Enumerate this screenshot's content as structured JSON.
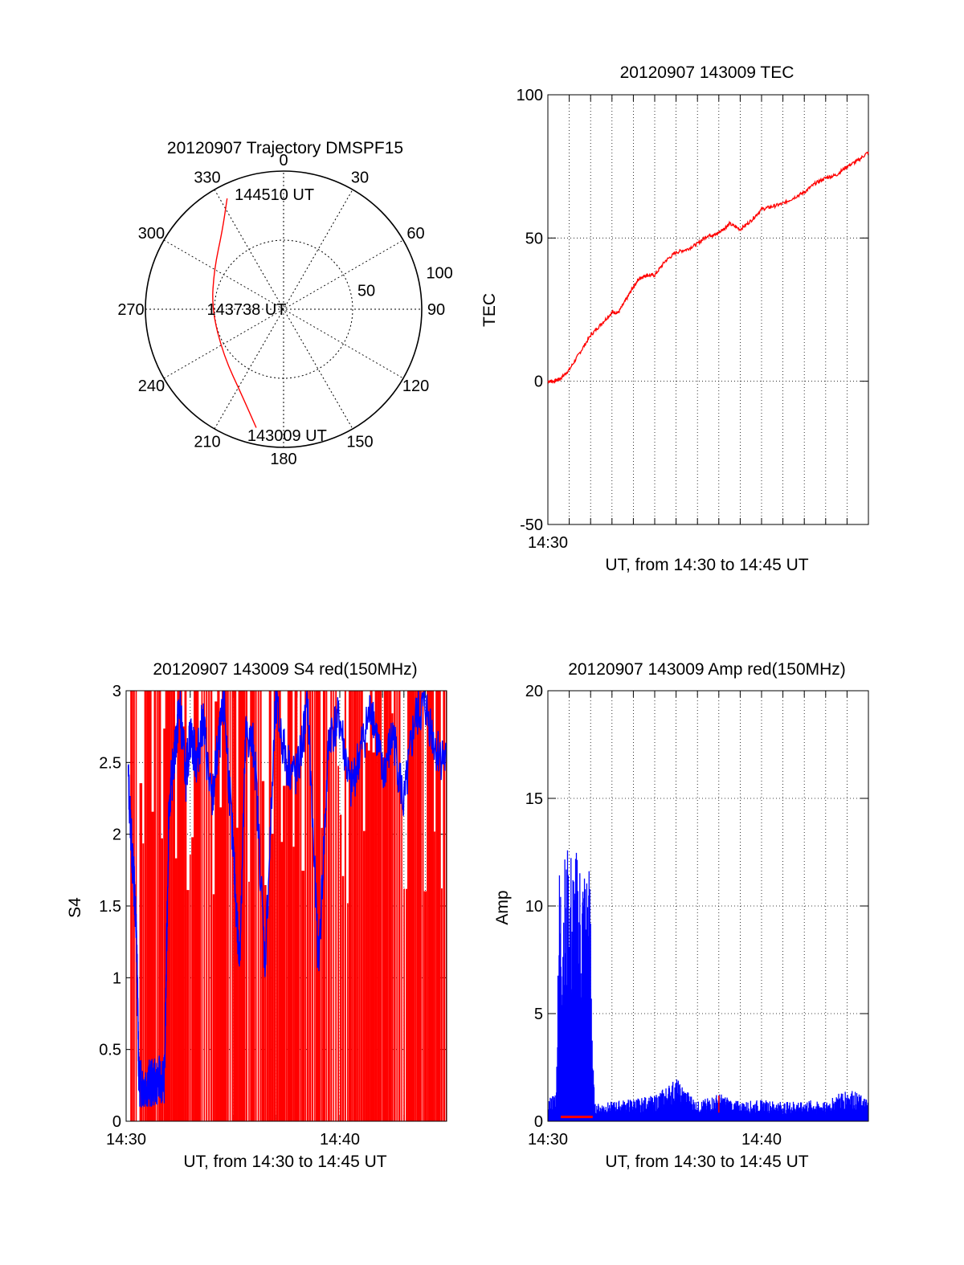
{
  "polar": {
    "type": "polar-trajectory",
    "title": "20120907 Trajectory DMSPF15",
    "azimuth_labels": [
      "0",
      "30",
      "60",
      "90",
      "120",
      "150",
      "180",
      "210",
      "240",
      "270",
      "300",
      "330"
    ],
    "radial_labels": [
      "50",
      "100"
    ],
    "trajectory": {
      "color": "#ff0000",
      "points": [
        {
          "az": 193,
          "r": 88
        },
        {
          "az": 205,
          "r": 70
        },
        {
          "az": 232,
          "r": 55
        },
        {
          "az": 270,
          "r": 52
        },
        {
          "az": 300,
          "r": 58
        },
        {
          "az": 322,
          "r": 72
        },
        {
          "az": 333,
          "r": 90
        }
      ]
    },
    "annotations": [
      {
        "text": "144510 UT",
        "az": 339,
        "r": 89
      },
      {
        "text": "143738 UT",
        "az": 270,
        "r": 52
      },
      {
        "text": "143009 UT",
        "az": 194,
        "r": 94
      }
    ]
  },
  "tec": {
    "type": "line",
    "title": "20120907 143009 TEC",
    "xlabel": "UT, from 14:30 to 14:45 UT",
    "ylabel": "TEC",
    "x_tick_labels": [
      "14:30"
    ],
    "y_tick_labels": [
      "100",
      "50",
      "0",
      "-50"
    ],
    "xlim": [
      0,
      15
    ],
    "ylim": [
      -50,
      100
    ],
    "series": [
      {
        "color": "#ff0000",
        "x": [
          0,
          0.3,
          0.6,
          1.0,
          1.5,
          2.0,
          2.5,
          3.0,
          3.3,
          3.7,
          4.0,
          4.3,
          4.6,
          5.0,
          5.5,
          6.0,
          6.5,
          7.0,
          7.5,
          7.8,
          8.2,
          8.5,
          9.0,
          9.5,
          10.0,
          10.5,
          11.0,
          11.5,
          12.0,
          12.5,
          13.0,
          13.5,
          14.0,
          14.5,
          15.0
        ],
        "y": [
          0,
          0,
          1,
          4,
          10,
          16,
          20,
          24,
          24,
          29,
          33,
          36,
          37,
          37,
          42,
          45,
          46,
          48,
          51,
          51,
          53,
          55,
          53,
          56,
          60,
          61,
          62,
          64,
          66,
          69,
          71,
          72,
          75,
          77,
          80
        ]
      }
    ]
  },
  "s4": {
    "type": "line",
    "title": "20120907 143009 S4 red(150MHz)",
    "xlabel": "UT, from 14:30 to 14:45 UT",
    "ylabel": "S4",
    "x_tick_labels": [
      "14:30",
      "14:40"
    ],
    "y_tick_labels": [
      "3",
      "2.5",
      "2",
      "1.5",
      "1",
      "0.5",
      "0"
    ],
    "xlim": [
      0,
      15
    ],
    "ylim": [
      0,
      3
    ],
    "series": [
      {
        "color": "#0000ff",
        "x": [
          0.1,
          0.3,
          0.4,
          0.5,
          0.6,
          0.8,
          1.0,
          1.2,
          1.5,
          1.8,
          2.0,
          2.3,
          2.5,
          2.8,
          3.0,
          3.3,
          3.6,
          4.0,
          4.3,
          4.6,
          5.0,
          5.3,
          5.6,
          6.0,
          6.5,
          7.0,
          7.5,
          8.0,
          8.5,
          9.0,
          9.5,
          10.0,
          10.5,
          11.0,
          11.5,
          12.0,
          12.5,
          13.0,
          13.5,
          14.0,
          14.5,
          15.0
        ],
        "y": [
          2.4,
          1.8,
          1.6,
          1.2,
          0.28,
          0.25,
          0.27,
          0.26,
          0.28,
          0.3,
          2.2,
          2.6,
          2.9,
          2.4,
          2.7,
          2.5,
          2.8,
          2.2,
          2.6,
          2.9,
          1.9,
          1.1,
          2.7,
          2.6,
          1.1,
          2.9,
          2.5,
          2.4,
          2.9,
          1.1,
          2.7,
          2.8,
          2.3,
          2.6,
          2.9,
          2.4,
          2.7,
          2.2,
          2.8,
          2.9,
          2.6,
          2.5
        ]
      }
    ],
    "red_fill": {
      "color": "#ff0000",
      "description_level": [
        1.5,
        3.0
      ]
    }
  },
  "amp": {
    "type": "line",
    "title": "20120907 143009 Amp red(150MHz)",
    "xlabel": "UT, from 14:30 to 14:45 UT",
    "ylabel": "Amp",
    "x_tick_labels": [
      "14:30",
      "14:40"
    ],
    "y_tick_labels": [
      "20",
      "15",
      "10",
      "5",
      "0"
    ],
    "xlim": [
      0,
      15
    ],
    "ylim": [
      0,
      20
    ],
    "series": [
      {
        "name": "blue",
        "color": "#0000ff",
        "x": [
          0,
          0.4,
          0.5,
          1.0,
          1.5,
          2.0,
          2.1,
          2.2,
          5.0,
          6.0,
          7.0,
          8.0,
          9.0,
          10.0,
          11.0,
          12.0,
          13.0,
          14.0,
          15.0
        ],
        "y": [
          1.0,
          1.5,
          12.0,
          12.8,
          12.5,
          12.0,
          3.0,
          0.8,
          1.2,
          2.0,
          0.9,
          1.3,
          0.9,
          1.0,
          0.9,
          1.0,
          0.9,
          1.6,
          1.0
        ]
      },
      {
        "name": "red",
        "color": "#ff0000",
        "x": [
          0.6,
          2.1,
          8.0
        ],
        "y": [
          0.2,
          0.2,
          1.2
        ]
      }
    ]
  }
}
